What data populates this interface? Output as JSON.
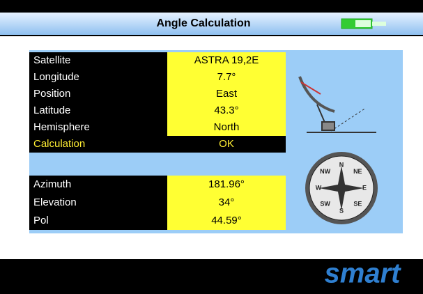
{
  "header": {
    "title": "Angle Calculation"
  },
  "inputs": [
    {
      "label": "Satellite",
      "value": "ASTRA 19,2E"
    },
    {
      "label": "Longitude",
      "value": "7.7°"
    },
    {
      "label": "Position",
      "value": "East"
    },
    {
      "label": "Latitude",
      "value": "43.3°"
    },
    {
      "label": "Hemisphere",
      "value": "North"
    }
  ],
  "action": {
    "label": "Calculation",
    "value": "OK"
  },
  "results": [
    {
      "label": "Azimuth",
      "value": "181.96°"
    },
    {
      "label": "Elevation",
      "value": "34°"
    },
    {
      "label": "Pol",
      "value": "44.59°"
    }
  ],
  "compass": [
    "N",
    "NE",
    "E",
    "SE",
    "S",
    "SW",
    "W",
    "NW"
  ],
  "footer": {
    "logo": "smart"
  }
}
